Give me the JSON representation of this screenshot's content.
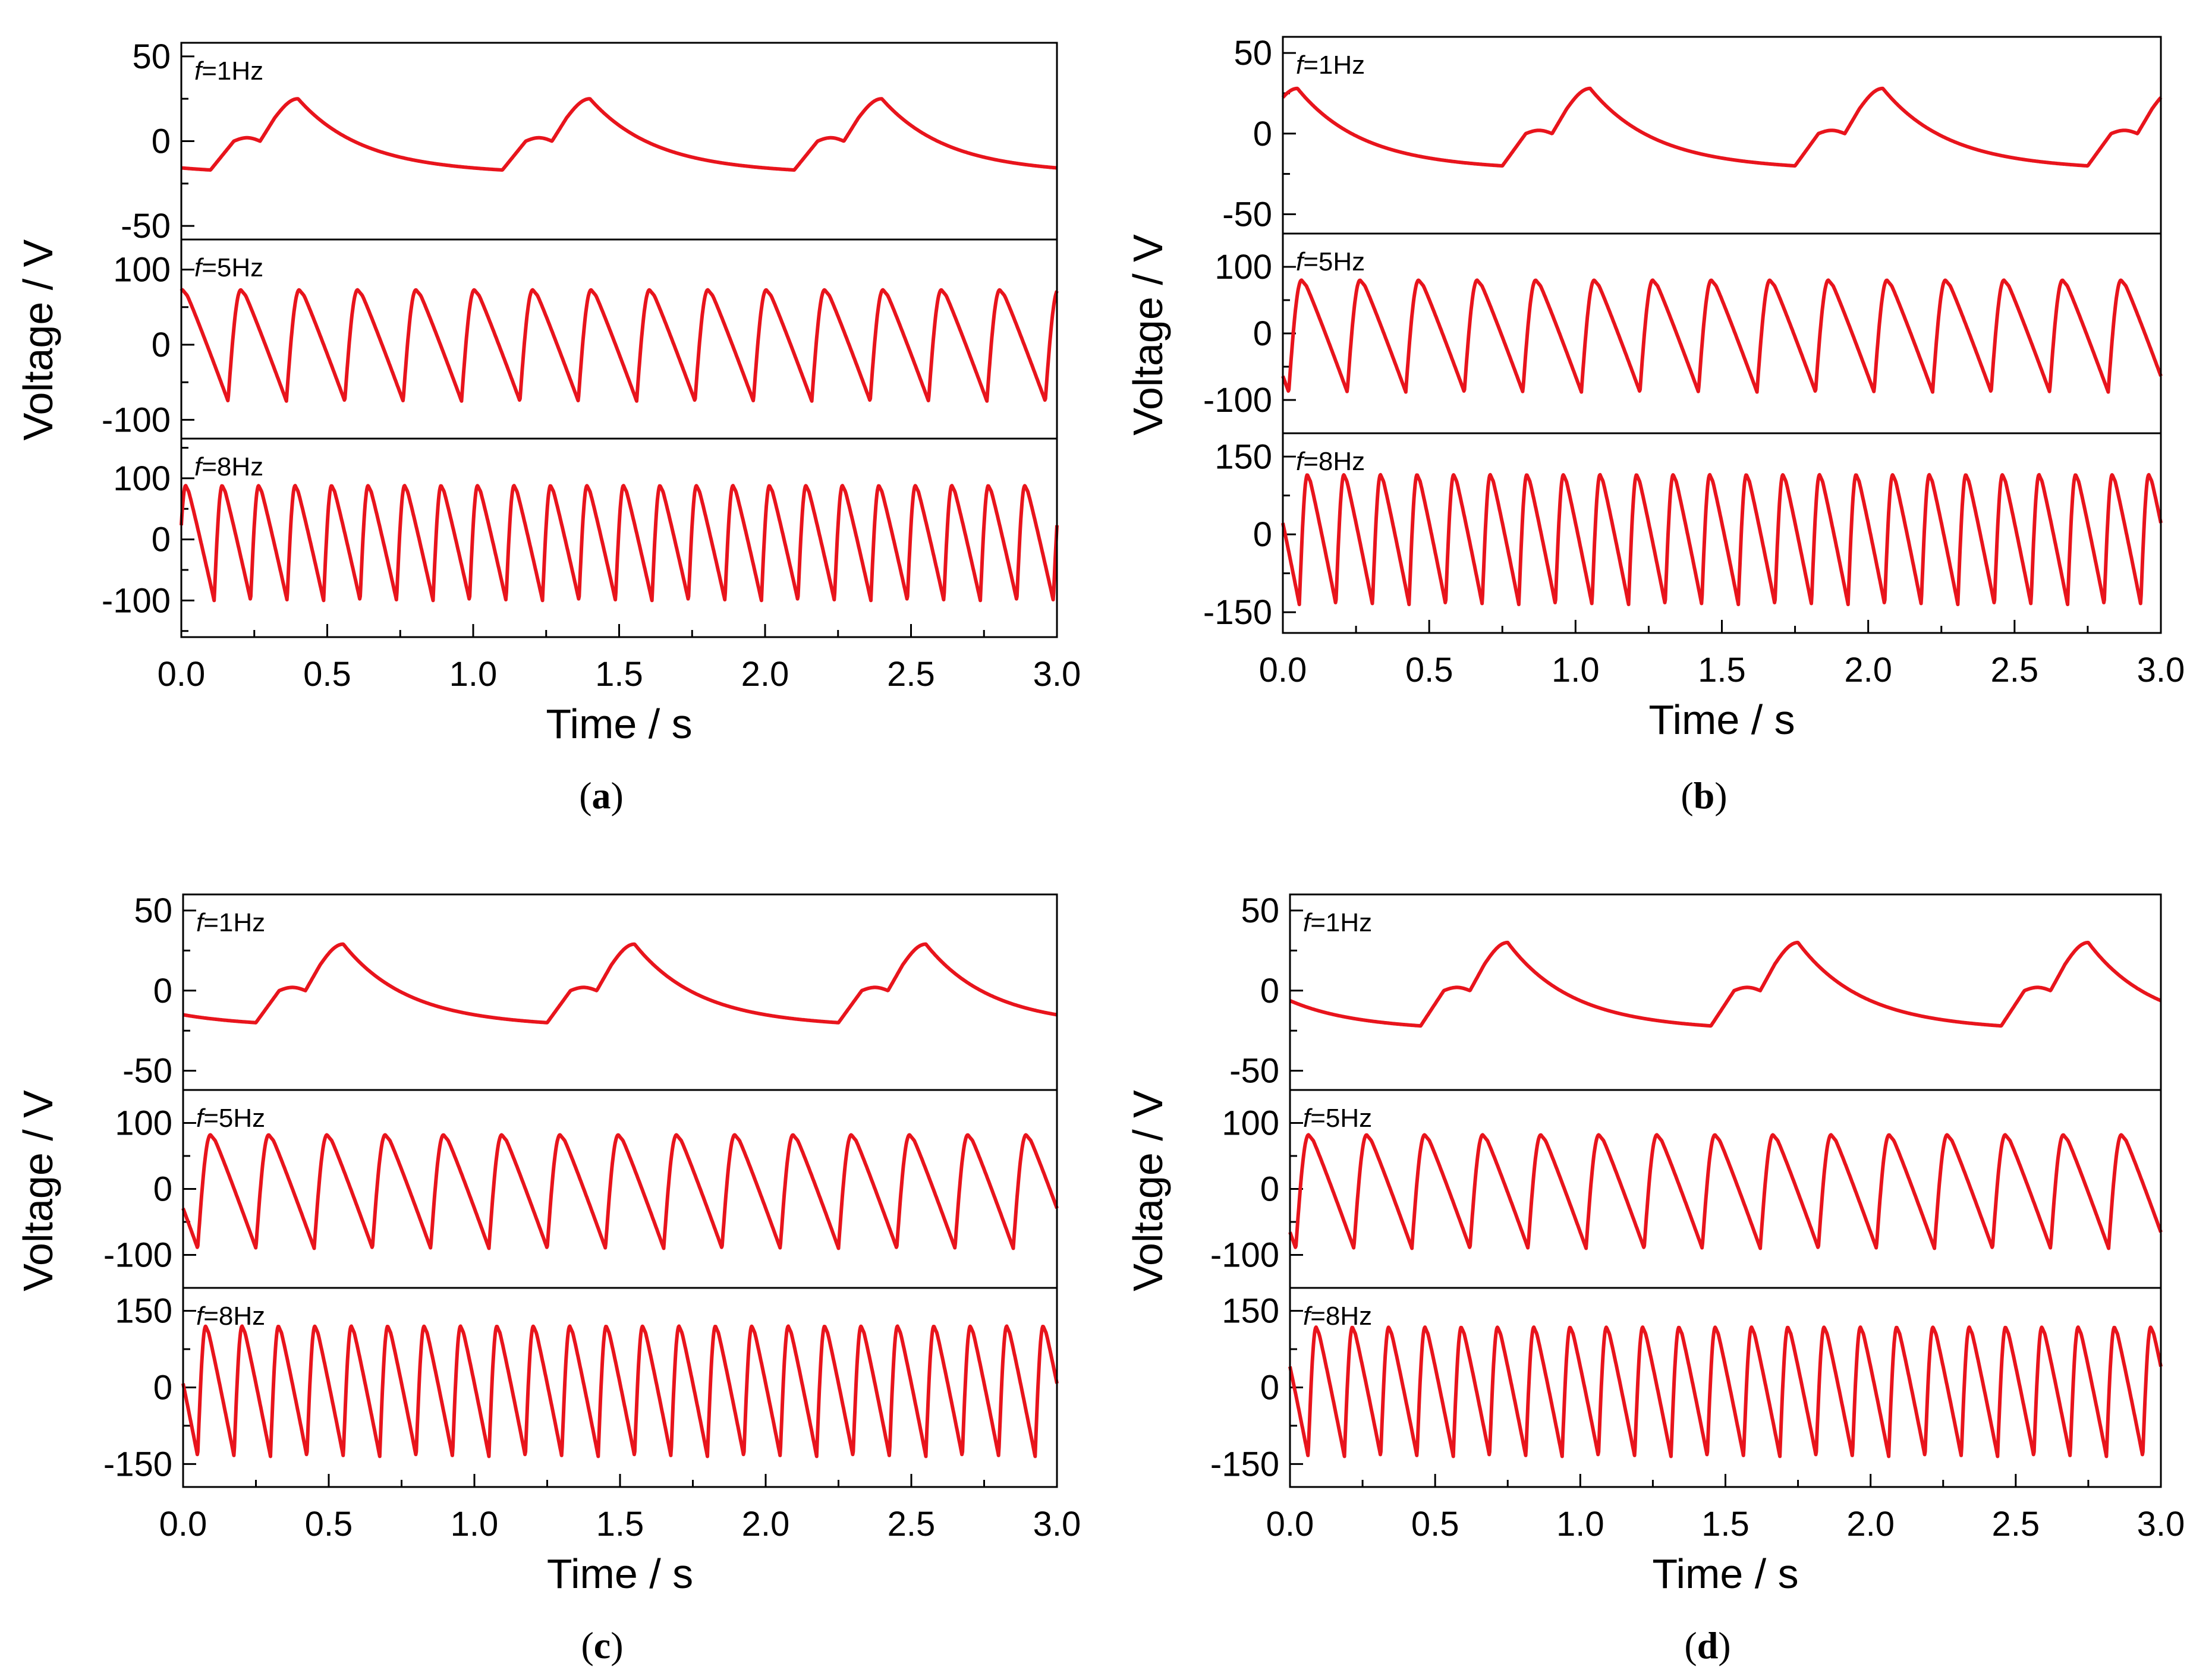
{
  "figure": {
    "panels": [
      {
        "caption": "(a)",
        "letter": "a",
        "ylabel": "Voltage / V",
        "xlabel": "Time / s"
      },
      {
        "caption": "(b)",
        "letter": "b",
        "ylabel": "Voltage / V",
        "xlabel": "Time / s"
      },
      {
        "caption": "(c)",
        "letter": "c",
        "ylabel": "Voltage / V",
        "xlabel": "Time / s"
      },
      {
        "caption": "(d)",
        "letter": "d",
        "ylabel": "Voltage / V",
        "xlabel": "Time / s"
      }
    ]
  },
  "colors": {
    "trace": "#e8141c",
    "axis": "#000000",
    "background": "#ffffff"
  },
  "chart_data": [
    {
      "type": "line",
      "panel": "a",
      "title": "(a)",
      "xlabel": "Time / s",
      "ylabel": "Voltage / V",
      "xlim": [
        0,
        3.0
      ],
      "x_ticks": [
        "0.0",
        "0.5",
        "1.0",
        "1.5",
        "2.0",
        "2.5",
        "3.0"
      ],
      "subplots": [
        {
          "label_italic": "f",
          "label_rest": "=1Hz",
          "freq": 1,
          "ylim": [
            -58,
            58
          ],
          "y_ticks": [
            50,
            0,
            -50
          ],
          "y_tick_labels": [
            "50",
            "0",
            "-50"
          ],
          "peak": 25,
          "trough": -17,
          "waveform": "impulse",
          "phase": 0.6
        },
        {
          "label_italic": "f",
          "label_rest": "=5Hz",
          "freq": 5,
          "ylim": [
            -125,
            140
          ],
          "y_ticks": [
            100,
            0,
            -100
          ],
          "y_tick_labels": [
            "100",
            "0",
            "-100"
          ],
          "peak": 73,
          "trough": -75,
          "waveform": "saw",
          "phase": 0.2
        },
        {
          "label_italic": "f",
          "label_rest": "=8Hz",
          "freq": 8,
          "ylim": [
            -160,
            165
          ],
          "y_ticks": [
            100,
            0,
            -100
          ],
          "y_tick_labels": [
            "100",
            "0",
            "-100"
          ],
          "peak": 88,
          "trough": -100,
          "waveform": "saw",
          "phase": 0.1
        }
      ]
    },
    {
      "type": "line",
      "panel": "b",
      "title": "(b)",
      "xlabel": "Time / s",
      "ylabel": "Voltage / V",
      "xlim": [
        0,
        3.0
      ],
      "x_ticks": [
        "0.0",
        "0.5",
        "1.0",
        "1.5",
        "2.0",
        "2.5",
        "3.0"
      ],
      "subplots": [
        {
          "label_italic": "f",
          "label_rest": "=1Hz",
          "freq": 1,
          "ylim": [
            -62,
            60
          ],
          "y_ticks": [
            50,
            0,
            -50
          ],
          "y_tick_labels": [
            "50",
            "0",
            "-50"
          ],
          "peak": 28,
          "trough": -20,
          "waveform": "impulse",
          "phase": 0.95
        },
        {
          "label_italic": "f",
          "label_rest": "=5Hz",
          "freq": 5,
          "ylim": [
            -150,
            150
          ],
          "y_ticks": [
            100,
            0,
            -100
          ],
          "y_tick_labels": [
            "100",
            "0",
            "-100"
          ],
          "peak": 80,
          "trough": -88,
          "waveform": "saw",
          "phase": 0.9
        },
        {
          "label_italic": "f",
          "label_rest": "=8Hz",
          "freq": 8,
          "ylim": [
            -190,
            195
          ],
          "y_ticks": [
            150,
            0,
            -150
          ],
          "y_tick_labels": [
            "150",
            "0",
            "-150"
          ],
          "peak": 115,
          "trough": -135,
          "waveform": "saw",
          "phase": 0.55
        }
      ]
    },
    {
      "type": "line",
      "panel": "c",
      "title": "(c)",
      "xlabel": "Time / s",
      "ylabel": "Voltage / V",
      "xlim": [
        0,
        3.0
      ],
      "x_ticks": [
        "0.0",
        "0.5",
        "1.0",
        "1.5",
        "2.0",
        "2.5",
        "3.0"
      ],
      "subplots": [
        {
          "label_italic": "f",
          "label_rest": "=1Hz",
          "freq": 1,
          "ylim": [
            -62,
            60
          ],
          "y_ticks": [
            50,
            0,
            -50
          ],
          "y_tick_labels": [
            "50",
            "0",
            "-50"
          ],
          "peak": 29,
          "trough": -20,
          "waveform": "impulse",
          "phase": 0.45
        },
        {
          "label_italic": "f",
          "label_rest": "=5Hz",
          "freq": 5,
          "ylim": [
            -150,
            150
          ],
          "y_ticks": [
            100,
            0,
            -100
          ],
          "y_tick_labels": [
            "100",
            "0",
            "-100"
          ],
          "peak": 82,
          "trough": -90,
          "waveform": "saw",
          "phase": 0.75
        },
        {
          "label_italic": "f",
          "label_rest": "=8Hz",
          "freq": 8,
          "ylim": [
            -195,
            195
          ],
          "y_ticks": [
            150,
            0,
            -150
          ],
          "y_tick_labels": [
            "150",
            "0",
            "-150"
          ],
          "peak": 120,
          "trough": -135,
          "waveform": "saw",
          "phase": 0.6
        }
      ]
    },
    {
      "type": "line",
      "panel": "d",
      "title": "(d)",
      "xlabel": "Time / s",
      "ylabel": "Voltage / V",
      "xlim": [
        0,
        3.0
      ],
      "x_ticks": [
        "0.0",
        "0.5",
        "1.0",
        "1.5",
        "2.0",
        "2.5",
        "3.0"
      ],
      "subplots": [
        {
          "label_italic": "f",
          "label_rest": "=1Hz",
          "freq": 1,
          "ylim": [
            -62,
            60
          ],
          "y_ticks": [
            50,
            0,
            -50
          ],
          "y_tick_labels": [
            "50",
            "0",
            "-50"
          ],
          "peak": 30,
          "trough": -22,
          "waveform": "impulse",
          "phase": 0.25
        },
        {
          "label_italic": "f",
          "label_rest": "=5Hz",
          "freq": 5,
          "ylim": [
            -150,
            150
          ],
          "y_ticks": [
            100,
            0,
            -100
          ],
          "y_tick_labels": [
            "100",
            "0",
            "-100"
          ],
          "peak": 82,
          "trough": -90,
          "waveform": "saw",
          "phase": 0.9
        },
        {
          "label_italic": "f",
          "label_rest": "=8Hz",
          "freq": 8,
          "ylim": [
            -195,
            195
          ],
          "y_ticks": [
            150,
            0,
            -150
          ],
          "y_tick_labels": [
            "150",
            "0",
            "-150"
          ],
          "peak": 118,
          "trough": -135,
          "waveform": "saw",
          "phase": 0.5
        }
      ]
    }
  ]
}
